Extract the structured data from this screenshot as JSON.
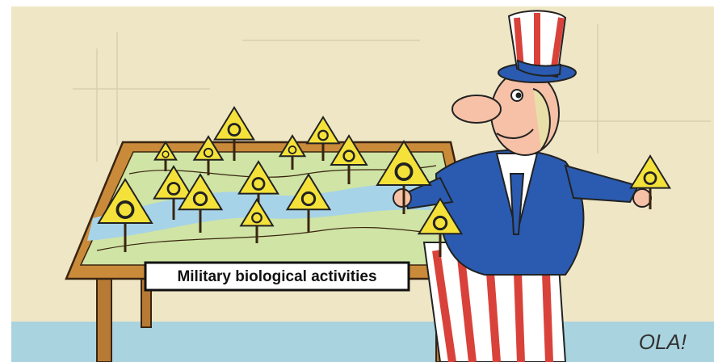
{
  "caption": "Military biological activities",
  "signature": "OLA!"
}
